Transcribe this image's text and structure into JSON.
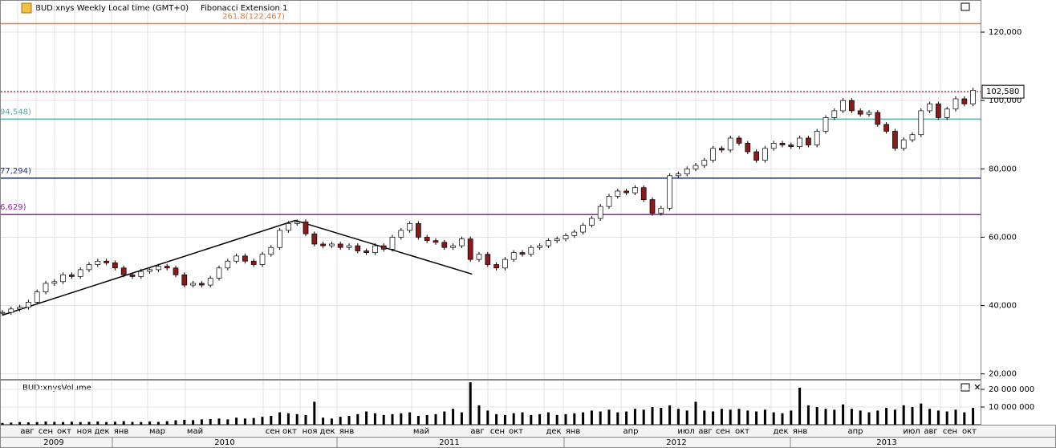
{
  "chart_data": {
    "type": "candlestick",
    "header": "BUD:xnys Weekly Local time (GMT+0)",
    "study": "Fibonacci Extension 1",
    "volume_title": "BUD:xnysVolume",
    "price_tag": {
      "value": 102580,
      "label": "102,580",
      "color": "#b22222"
    },
    "fib_levels": [
      {
        "value": 122467,
        "label": "261.8(122,467)",
        "color": "#e07a3a"
      },
      {
        "value": 94548,
        "label": "94,548)",
        "color": "#5fa8a8"
      },
      {
        "value": 77294,
        "label": "77,294)",
        "color": "#1f2f9a"
      },
      {
        "value": 66629,
        "label": "6,629)",
        "color": "#8a2a9a"
      }
    ],
    "trendline": {
      "x": [
        0,
        33.8,
        54.2
      ],
      "y": [
        37200,
        64900,
        49200
      ],
      "color": "#000000"
    },
    "up_color": "#ffffff",
    "down_color": "#8b1a1a",
    "close": [
      38000,
      39000,
      39500,
      41000,
      44000,
      46500,
      47000,
      49000,
      48500,
      50500,
      52000,
      53000,
      52500,
      51000,
      49000,
      48500,
      50000,
      50500,
      51500,
      51000,
      49000,
      46000,
      46500,
      46000,
      48000,
      51000,
      53000,
      54500,
      53000,
      52000,
      55000,
      57000,
      62000,
      64000,
      64500,
      61000,
      58000,
      57500,
      58000,
      57000,
      57500,
      56000,
      55500,
      57500,
      56500,
      60000,
      62000,
      64000,
      60000,
      59000,
      58500,
      57000,
      57500,
      59500,
      53500,
      55000,
      52000,
      51000,
      53500,
      55500,
      55000,
      57000,
      57500,
      59000,
      59500,
      60500,
      61500,
      63500,
      65500,
      69000,
      72000,
      73500,
      73000,
      74500,
      71000,
      67000,
      68500,
      78000,
      78500,
      80000,
      81000,
      82500,
      86000,
      85500,
      89000,
      87500,
      85000,
      82500,
      86000,
      87500,
      87000,
      86500,
      89000,
      87000,
      91000,
      95000,
      97000,
      100000,
      97000,
      96000,
      96500,
      93000,
      91000,
      86000,
      88500,
      90000,
      97000,
      99000,
      95000,
      97500,
      100500,
      99000,
      103000
    ],
    "volume": [
      1000000,
      1200000,
      1500000,
      1300000,
      1500000,
      1800000,
      1600000,
      1500000,
      1700000,
      1500000,
      1600000,
      1800000,
      1500000,
      1700000,
      2000000,
      1600000,
      1500000,
      1800000,
      1600000,
      2000000,
      2500000,
      2800000,
      2600000,
      3000000,
      3200000,
      3500000,
      3000000,
      4000000,
      3500000,
      3800000,
      4500000,
      5000000,
      7000000,
      6500000,
      6000000,
      5500000,
      13000000,
      4000000,
      3500000,
      4500000,
      5000000,
      6000000,
      7500000,
      6500000,
      5500000,
      6000000,
      6500000,
      7000000,
      5000000,
      5500000,
      6000000,
      7500000,
      9000000,
      7000000,
      24000000,
      11000000,
      8000000,
      6000000,
      5500000,
      6500000,
      7000000,
      5500000,
      6000000,
      7000000,
      5500000,
      6000000,
      6500000,
      7000000,
      8000000,
      7500000,
      8500000,
      7000000,
      7500000,
      9000000,
      8500000,
      10000000,
      9500000,
      11000000,
      9000000,
      8000000,
      13000000,
      8000000,
      7500000,
      9000000,
      8500000,
      9000000,
      8000000,
      7500000,
      8500000,
      7000000,
      6500000,
      8000000,
      21000000,
      11000000,
      10000000,
      9000000,
      8500000,
      11500000,
      9000000,
      8000000,
      7000000,
      8000000,
      9500000,
      8500000,
      11000000,
      10000000,
      12000000,
      9000000,
      8000000,
      7500000,
      8500000,
      7000000,
      9500000
    ],
    "ylim": [
      19000,
      129400
    ],
    "yticks": [
      {
        "value": 120000,
        "label": "120,000"
      },
      {
        "value": 100000,
        "label": "100,000"
      },
      {
        "value": 80000,
        "label": "80,000"
      },
      {
        "value": 60000,
        "label": "60,000"
      },
      {
        "value": 40000,
        "label": "40,000"
      },
      {
        "value": 20000,
        "label": "20,000"
      }
    ],
    "vlim": [
      0,
      25000000
    ],
    "vticks": [
      {
        "value": 20000000,
        "label": "20 000 000"
      },
      {
        "value": 10000000,
        "label": "10 000 000"
      }
    ],
    "months": [
      "авг",
      "сен",
      "окт",
      "ноя",
      "дек",
      "янв",
      "мар",
      "май",
      "сен",
      "окт",
      "ноя",
      "дек",
      "янв",
      "май",
      "авг",
      "сен",
      "окт",
      "дек",
      "янв",
      "апр",
      "июл",
      "авг",
      "сен",
      "окт",
      "дек",
      "янв",
      "апр",
      "июл",
      "авг",
      "сен",
      "окт"
    ],
    "years": [
      "2009",
      "2010",
      "2011",
      "2012",
      "2013"
    ],
    "grid": true
  }
}
